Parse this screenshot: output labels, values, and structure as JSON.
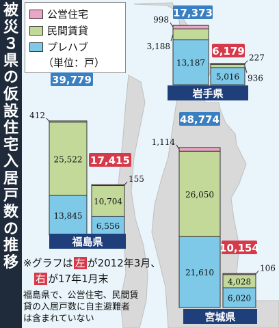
{
  "title": "被災３県の仮設住宅入居戸数の推移",
  "legend": {
    "items": [
      {
        "label": "公営住宅",
        "color": "#e8a7c4"
      },
      {
        "label": "民間賃貸",
        "color": "#c2d99a"
      },
      {
        "label": "プレハブ",
        "color": "#7ec8e8"
      }
    ],
    "unit": "（単位：戸）"
  },
  "note": {
    "lines": [
      {
        "prefix": "※グラフは",
        "tag": "左",
        "tag_color": "#d63a4a",
        "suffix": "が2012年3月、"
      },
      {
        "prefix": "",
        "tag": "右",
        "tag_color": "#d63a4a",
        "suffix": "が17年1月末"
      }
    ],
    "detail": [
      "福島県で、公営住宅、民間賃",
      "貸の入居戸数に自主避難者",
      "は含まれていない"
    ]
  },
  "colors": {
    "public": "#e8a7c4",
    "private": "#c2d99a",
    "prefab": "#7ec8e8",
    "total_2012": "#3a7fc1",
    "total_2017": "#d63a4a",
    "prefecture_label": "#1f3f7a",
    "title_band": "#1f2b3a",
    "land": "#d9d9d9",
    "sea": "#e9f5fb"
  },
  "chart_data": [
    {
      "type": "bar",
      "stacked": true,
      "title": "福島県",
      "categories": [
        "2012年3月",
        "17年1月末"
      ],
      "series": [
        {
          "name": "プレハブ",
          "values": [
            13845,
            6556
          ]
        },
        {
          "name": "民間賃貸",
          "values": [
            25522,
            10704
          ]
        },
        {
          "name": "公営住宅",
          "values": [
            412,
            155
          ]
        }
      ],
      "totals": [
        39779,
        17415
      ],
      "labels": {
        "totals": [
          "39,779",
          "17,415"
        ],
        "prefab": [
          "13,845",
          "6,556"
        ],
        "private": [
          "25,522",
          "10,704"
        ],
        "public": [
          "412",
          "155"
        ]
      }
    },
    {
      "type": "bar",
      "stacked": true,
      "title": "岩手県",
      "categories": [
        "2012年3月",
        "17年1月末"
      ],
      "series": [
        {
          "name": "プレハブ",
          "values": [
            13187,
            5016
          ]
        },
        {
          "name": "民間賃貸",
          "values": [
            3188,
            936
          ]
        },
        {
          "name": "公営住宅",
          "values": [
            998,
            227
          ]
        }
      ],
      "totals": [
        17373,
        6179
      ],
      "labels": {
        "totals": [
          "17,373",
          "6,179"
        ],
        "prefab": [
          "13,187",
          "5,016"
        ],
        "private": [
          "3,188",
          "936"
        ],
        "public": [
          "998",
          "227"
        ]
      }
    },
    {
      "type": "bar",
      "stacked": true,
      "title": "宮城県",
      "categories": [
        "2012年3月",
        "17年1月末"
      ],
      "series": [
        {
          "name": "プレハブ",
          "values": [
            21610,
            6020
          ]
        },
        {
          "name": "民間賃貸",
          "values": [
            26050,
            4028
          ]
        },
        {
          "name": "公営住宅",
          "values": [
            1114,
            106
          ]
        }
      ],
      "totals": [
        48774,
        10154
      ],
      "labels": {
        "totals": [
          "48,774",
          "10,154"
        ],
        "prefab": [
          "21,610",
          "6,020"
        ],
        "private": [
          "26,050",
          "4,028"
        ],
        "public": [
          "1,114",
          "106"
        ]
      }
    }
  ]
}
